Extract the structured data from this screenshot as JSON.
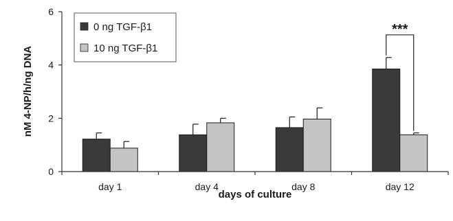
{
  "chart_data": {
    "type": "bar",
    "categories": [
      "day 1",
      "day 4",
      "day 8",
      "day 12"
    ],
    "series": [
      {
        "name": "0 ng TGF-β1",
        "values": [
          1.22,
          1.38,
          1.65,
          3.85
        ],
        "errors": [
          0.23,
          0.4,
          0.4,
          0.43
        ],
        "color": "#3a3a3a"
      },
      {
        "name": "10 ng TGF-β1",
        "values": [
          0.88,
          1.83,
          1.97,
          1.38
        ],
        "errors": [
          0.25,
          0.17,
          0.42,
          0.07
        ],
        "color": "#c4c4c4"
      }
    ],
    "xlabel": "days of culture",
    "ylabel": "nM 4-NP/h/ng DNA",
    "ylim": [
      0,
      6
    ],
    "yticks": [
      0,
      2,
      4,
      6
    ],
    "grid": false,
    "legend_position": "top-left",
    "annotations": [
      {
        "text": "***",
        "category": "day 12"
      }
    ]
  }
}
